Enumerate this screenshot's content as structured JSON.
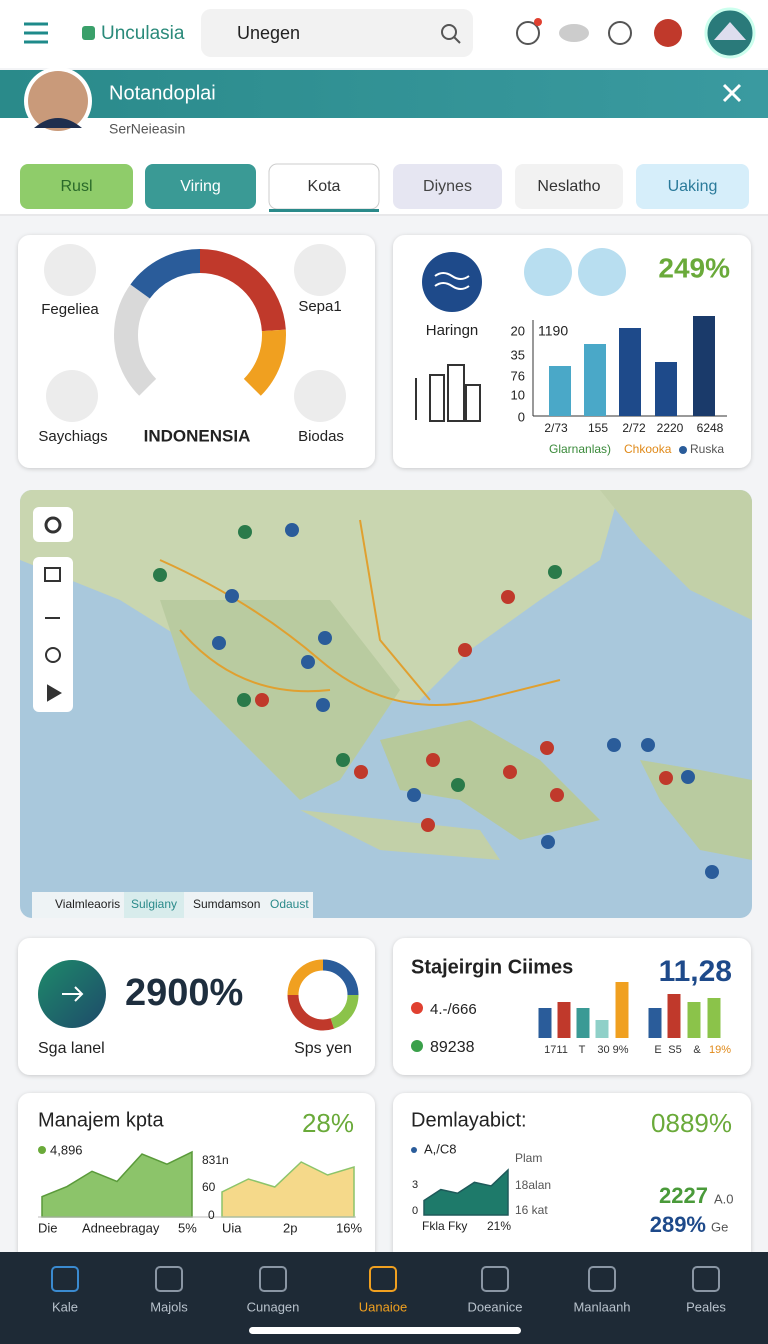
{
  "top_bar": {
    "brand": "Unculasia",
    "search": "Unegen"
  },
  "profile": {
    "name": "Notandoplai",
    "subtitle": "SerNeieasin"
  },
  "tabs": [
    "Rusl",
    "Viring",
    "Kota",
    "Diynes",
    "Neslatho",
    "Uaking"
  ],
  "region_card": {
    "labels": [
      "Fegeliea",
      "Sepa1",
      "Saychiags",
      "Biodas"
    ],
    "title": "INDONENSIA",
    "gauge": {
      "values": [
        30,
        20,
        32,
        18
      ],
      "colors": [
        "#d9d9d9",
        "#2a5c9a",
        "#c0392b",
        "#f0a020"
      ]
    }
  },
  "stats_card": {
    "label": "Haringn",
    "percent": "249%",
    "top_label": "1190",
    "ylabels": [
      "20",
      "35",
      "76",
      "10",
      "0"
    ],
    "categories": [
      "2/73",
      "155",
      "2/72",
      "2220",
      "6248"
    ],
    "values": [
      50,
      72,
      88,
      54,
      100
    ],
    "colors": [
      "#4aa8c8",
      "#4aa8c8",
      "#1e4a8a",
      "#1e4a8a",
      "#1a3a6a"
    ],
    "legend": [
      "Glarnanlas)",
      "Chkooka",
      "Ruska"
    ]
  },
  "map": {
    "legend": [
      "Vialmleaoris",
      "Sulgiany",
      "Sumdamson",
      "Odaust"
    ]
  },
  "gauge_card": {
    "value": "2900%",
    "left_label": "Sga lanel",
    "right_label": "Sps yen",
    "donut": {
      "values": [
        25,
        20,
        30,
        25
      ],
      "colors": [
        "#2a5c9a",
        "#8bc34a",
        "#c0392b",
        "#f0a020"
      ]
    }
  },
  "crimes_card": {
    "title": "Stajeirgin Ciimes",
    "value": "11,28",
    "rows": [
      "4.-/666",
      "89238"
    ],
    "values": [
      30,
      36,
      30,
      18,
      56,
      30,
      44,
      36,
      40
    ],
    "colors": [
      "#2a5c9a",
      "#c0392b",
      "#3a9a95",
      "#8fd0c8",
      "#f0a020",
      "#2a5c9a",
      "#c0392b",
      "#8bc34a",
      "#8bc34a"
    ],
    "xlabels": [
      "1711",
      "T",
      "30 9%",
      "E",
      "S5",
      "&",
      "19%"
    ]
  },
  "manage_card": {
    "title": "Manajem kpta",
    "percent": "28%",
    "legend": "4,896",
    "ylabels": [
      "831n",
      "60",
      "0"
    ],
    "xlabels": [
      "Die",
      "Adneebragay",
      "5%",
      "Uia",
      "2p",
      "16%"
    ],
    "area1": [
      20,
      30,
      45,
      35,
      62,
      52,
      64
    ],
    "area2": [
      25,
      38,
      30,
      55,
      42,
      50
    ]
  },
  "deploy_card": {
    "title": "Demlayabict:",
    "percent": "0889%",
    "legend": "A,/C8",
    "right_labels": [
      "Plam",
      "18alan",
      "16 kat"
    ],
    "ylabels": [
      "3",
      "0"
    ],
    "xlabels": [
      "Fkla Fky",
      "21%"
    ],
    "area": [
      20,
      35,
      30,
      45,
      40,
      62
    ],
    "stat1": "2227",
    "stat1_unit": "A.0",
    "stat2": "289%",
    "stat2_unit": "Ge"
  },
  "nav": [
    "Kale",
    "Majols",
    "Cunagen",
    "Uanaioe",
    "Doeanice",
    "Manlaanh",
    "Peales"
  ]
}
